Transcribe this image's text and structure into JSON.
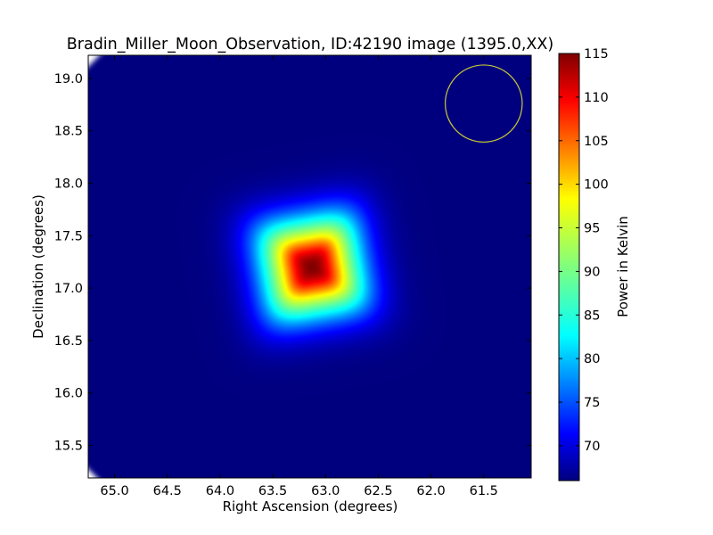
{
  "chart_data": {
    "type": "heatmap",
    "title": "Bradin_Miller_Moon_Observation, ID:42190 image (1395.0,XX)",
    "xlabel": "Right Ascension (degrees)",
    "ylabel": "Declination (degrees)",
    "xlim": [
      65.25,
      61.05
    ],
    "ylim": [
      15.19,
      19.22
    ],
    "x_ticks": [
      65.0,
      64.5,
      64.0,
      63.5,
      63.0,
      62.5,
      62.0,
      61.5
    ],
    "x_tick_labels": [
      "65.0",
      "64.5",
      "64.0",
      "63.5",
      "63.0",
      "62.5",
      "62.0",
      "61.5"
    ],
    "y_ticks": [
      15.5,
      16.0,
      16.5,
      17.0,
      17.5,
      18.0,
      18.5,
      19.0
    ],
    "y_tick_labels": [
      "15.5",
      "16.0",
      "16.5",
      "17.0",
      "17.5",
      "18.0",
      "18.5",
      "19.0"
    ],
    "colorbar": {
      "label": "Power in Kelvin",
      "range": [
        66,
        115
      ],
      "ticks": [
        70,
        75,
        80,
        85,
        90,
        95,
        100,
        105,
        110,
        115
      ],
      "tick_labels": [
        "70",
        "75",
        "80",
        "85",
        "90",
        "95",
        "100",
        "105",
        "110",
        "115"
      ],
      "colormap": "jet"
    },
    "source": {
      "ra": 63.13,
      "dec": 17.2,
      "peak_kelvin": 115,
      "background_kelvin": 66,
      "half_size_deg": 0.6,
      "rotation_deg": 10
    },
    "beam_circle": {
      "ra": 61.5,
      "dec": 18.76,
      "radius_deg": 0.365,
      "color": "#c8c832"
    },
    "corner_cut_deg": 0.45
  }
}
